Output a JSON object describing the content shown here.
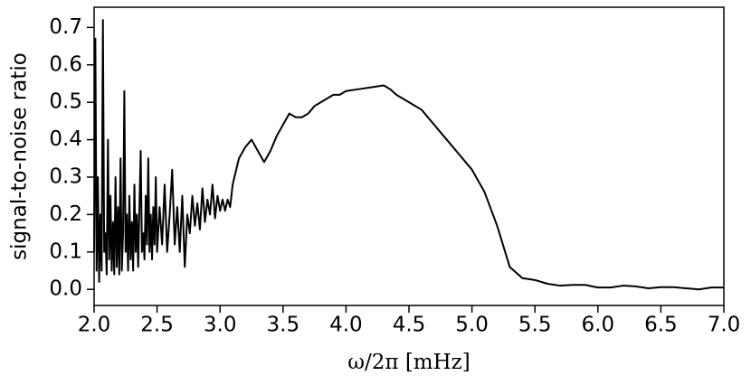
{
  "chart_data": {
    "type": "line",
    "xlabel": "ω/2π [mHz]",
    "ylabel": "signal-to-noise ratio",
    "x": [
      2.0,
      2.01,
      2.02,
      2.03,
      2.04,
      2.05,
      2.06,
      2.07,
      2.08,
      2.09,
      2.1,
      2.11,
      2.12,
      2.13,
      2.14,
      2.15,
      2.16,
      2.17,
      2.18,
      2.19,
      2.2,
      2.21,
      2.22,
      2.23,
      2.24,
      2.25,
      2.26,
      2.27,
      2.28,
      2.29,
      2.3,
      2.31,
      2.32,
      2.33,
      2.34,
      2.35,
      2.36,
      2.37,
      2.38,
      2.39,
      2.4,
      2.41,
      2.42,
      2.43,
      2.44,
      2.45,
      2.46,
      2.47,
      2.48,
      2.49,
      2.5,
      2.52,
      2.54,
      2.56,
      2.58,
      2.6,
      2.62,
      2.64,
      2.66,
      2.68,
      2.7,
      2.72,
      2.74,
      2.76,
      2.78,
      2.8,
      2.82,
      2.84,
      2.86,
      2.88,
      2.9,
      2.92,
      2.94,
      2.96,
      2.98,
      3.0,
      3.02,
      3.04,
      3.06,
      3.08,
      3.1,
      3.15,
      3.2,
      3.25,
      3.3,
      3.35,
      3.4,
      3.45,
      3.5,
      3.55,
      3.6,
      3.65,
      3.7,
      3.75,
      3.8,
      3.85,
      3.9,
      3.95,
      4.0,
      4.1,
      4.2,
      4.3,
      4.35,
      4.4,
      4.5,
      4.6,
      4.7,
      4.8,
      4.9,
      5.0,
      5.1,
      5.2,
      5.3,
      5.4,
      5.5,
      5.6,
      5.7,
      5.8,
      5.9,
      6.0,
      6.1,
      6.2,
      6.3,
      6.4,
      6.5,
      6.6,
      6.7,
      6.8,
      6.9,
      7.0
    ],
    "series": [
      {
        "color": "#000000",
        "values": [
          0.1,
          0.67,
          0.05,
          0.3,
          0.02,
          0.2,
          0.05,
          0.72,
          0.1,
          0.15,
          0.04,
          0.4,
          0.08,
          0.25,
          0.05,
          0.18,
          0.04,
          0.3,
          0.06,
          0.22,
          0.04,
          0.35,
          0.05,
          0.15,
          0.53,
          0.1,
          0.2,
          0.05,
          0.25,
          0.08,
          0.18,
          0.05,
          0.28,
          0.1,
          0.2,
          0.06,
          0.22,
          0.37,
          0.1,
          0.15,
          0.08,
          0.25,
          0.12,
          0.35,
          0.1,
          0.2,
          0.08,
          0.22,
          0.12,
          0.3,
          0.1,
          0.22,
          0.12,
          0.28,
          0.1,
          0.2,
          0.32,
          0.12,
          0.22,
          0.1,
          0.25,
          0.06,
          0.2,
          0.15,
          0.25,
          0.17,
          0.23,
          0.16,
          0.27,
          0.18,
          0.24,
          0.2,
          0.28,
          0.19,
          0.25,
          0.21,
          0.24,
          0.21,
          0.24,
          0.22,
          0.28,
          0.35,
          0.38,
          0.4,
          0.37,
          0.34,
          0.37,
          0.41,
          0.44,
          0.47,
          0.46,
          0.46,
          0.47,
          0.49,
          0.5,
          0.51,
          0.52,
          0.52,
          0.53,
          0.535,
          0.54,
          0.545,
          0.535,
          0.52,
          0.5,
          0.48,
          0.44,
          0.4,
          0.36,
          0.32,
          0.26,
          0.17,
          0.06,
          0.03,
          0.025,
          0.015,
          0.01,
          0.012,
          0.012,
          0.005,
          0.005,
          0.01,
          0.008,
          0.003,
          0.006,
          0.006,
          0.003,
          0.0,
          0.005,
          0.005
        ]
      }
    ],
    "xlim": [
      2.0,
      7.0
    ],
    "ylim": [
      -0.043,
      0.754
    ],
    "xticks": [
      {
        "value": 2,
        "label": "2.0"
      },
      2.5,
      {
        "value": 3,
        "label": "3.0"
      },
      3.5,
      {
        "value": 4,
        "label": "4.0"
      },
      4.5,
      {
        "value": 5,
        "label": "5.0"
      },
      5.5,
      {
        "value": 6,
        "label": "6.0"
      },
      6.5,
      {
        "value": 7,
        "label": "7.0"
      }
    ],
    "yticks": [
      {
        "value": 0,
        "label": "0.0"
      },
      0.1,
      0.2,
      0.3,
      0.4,
      0.5,
      0.6,
      0.7
    ]
  }
}
